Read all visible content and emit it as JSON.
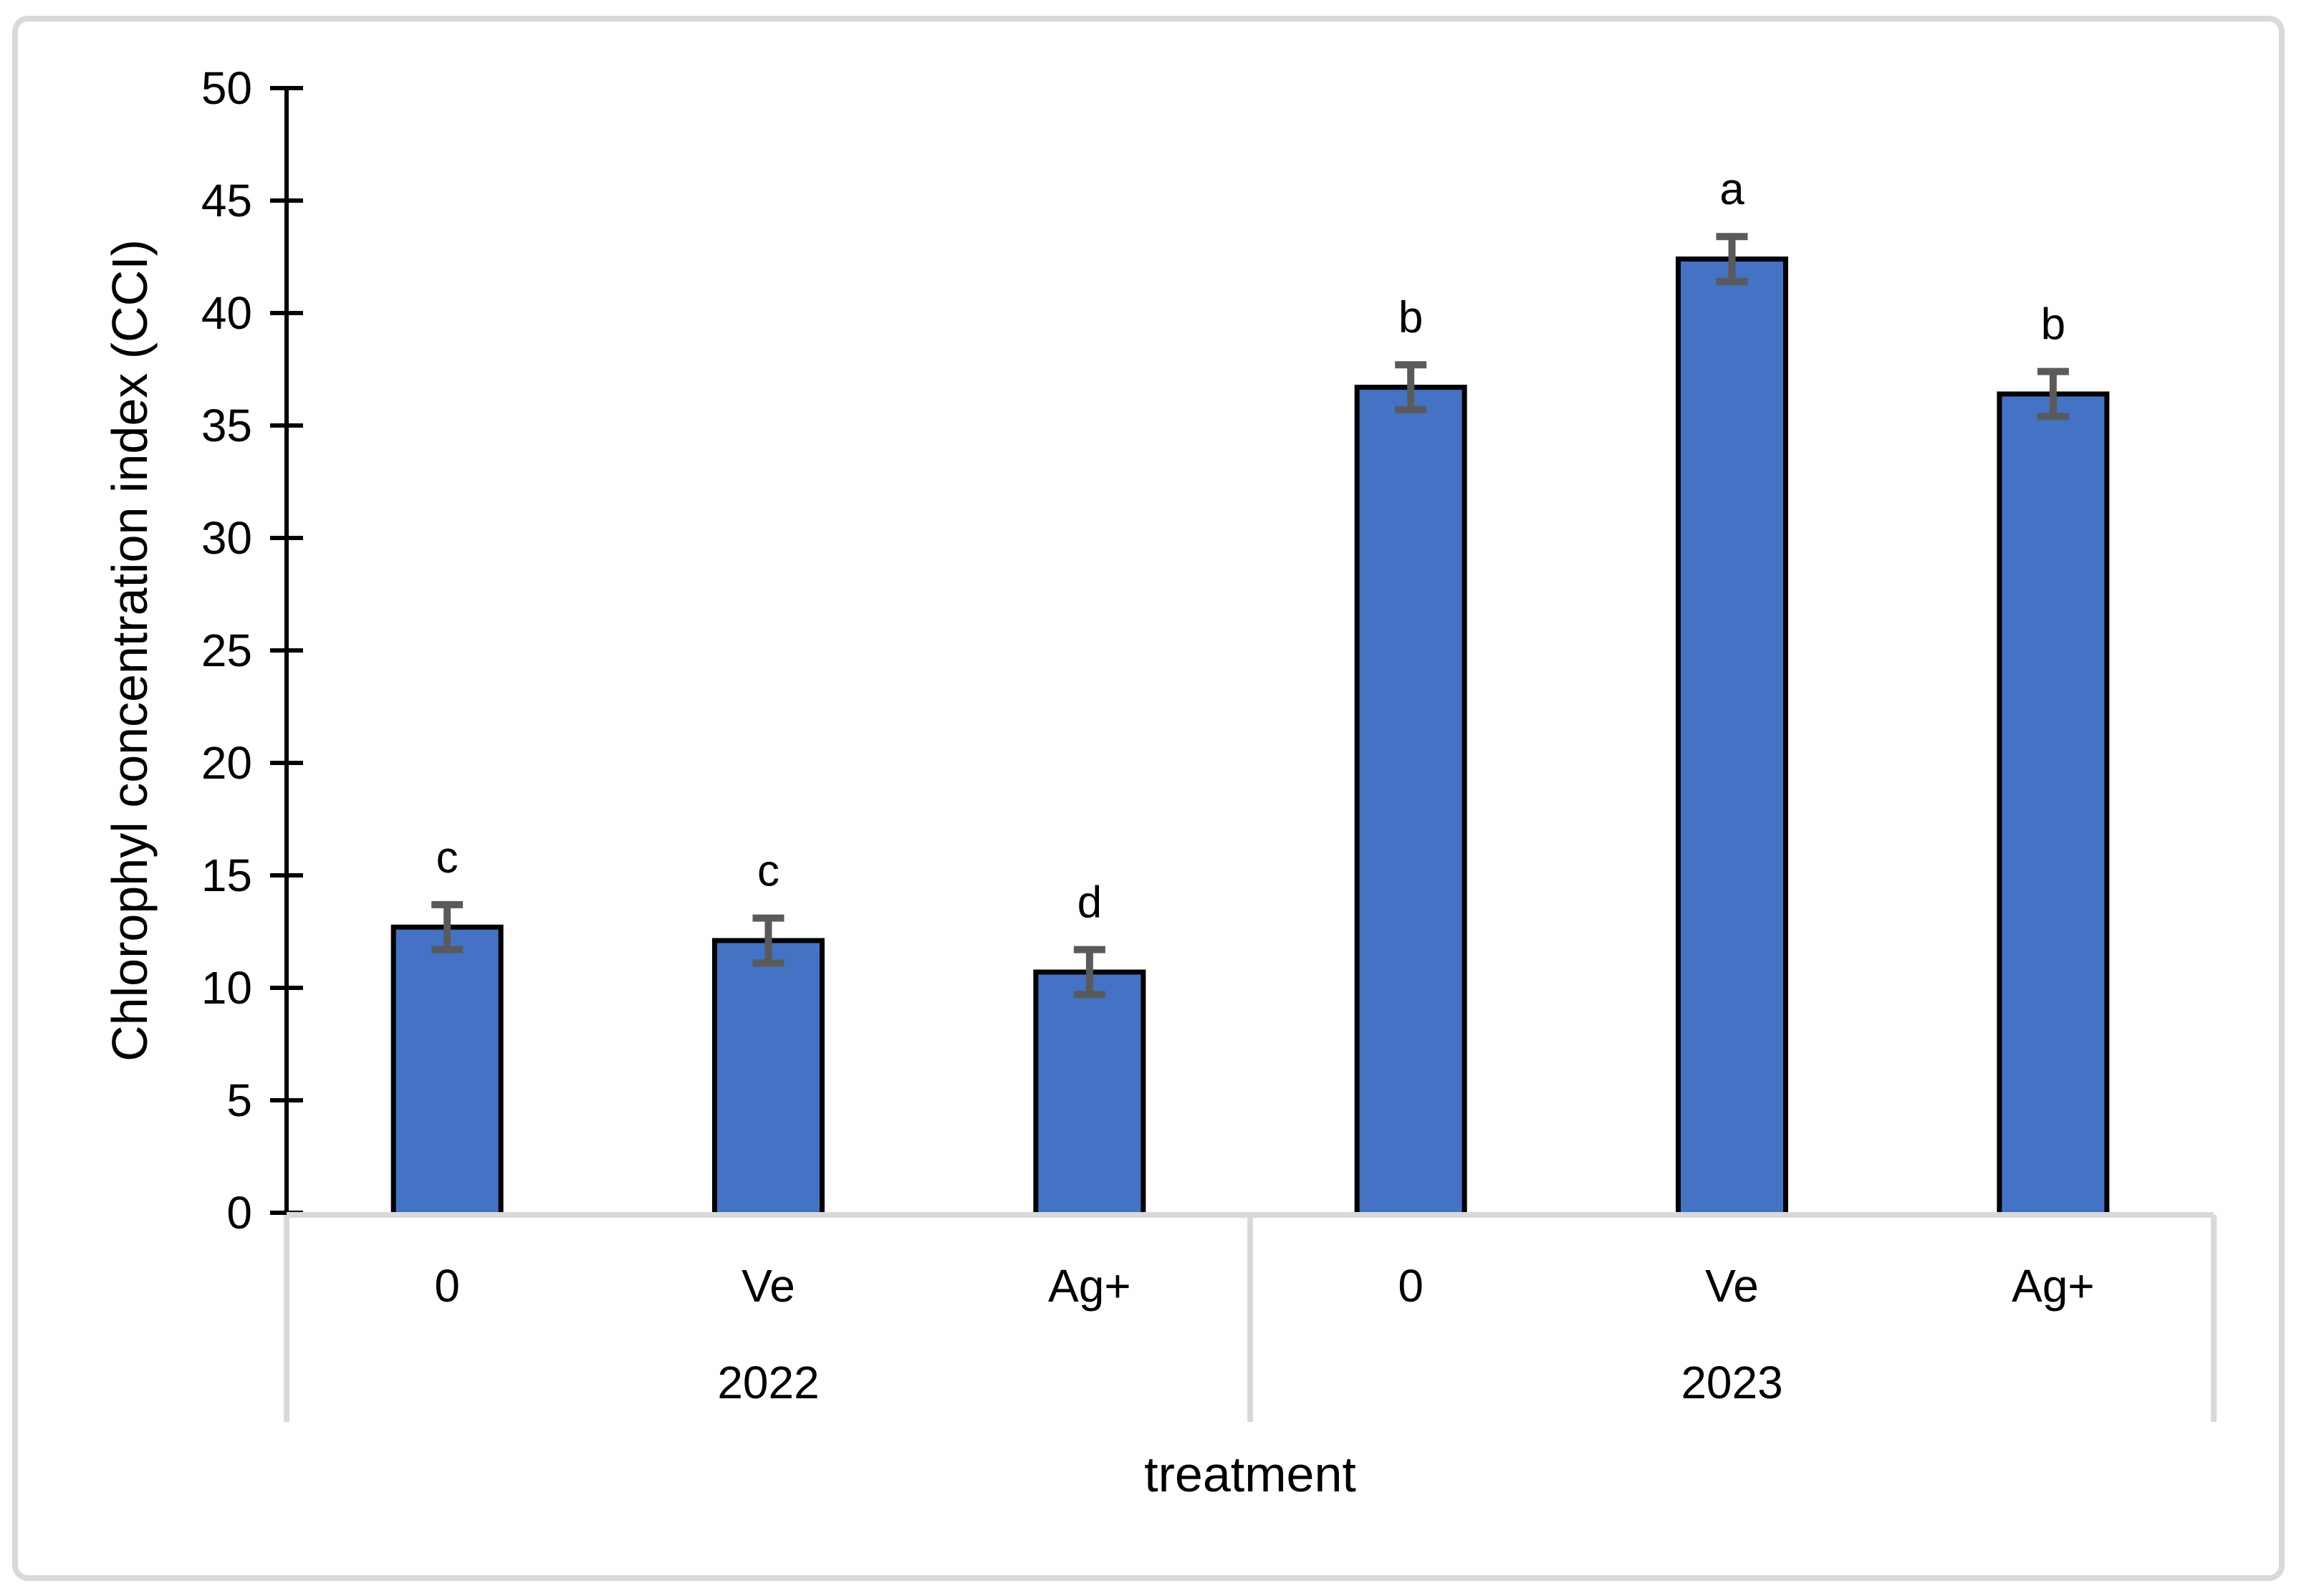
{
  "chart_data": {
    "type": "bar",
    "title": "",
    "ylabel": "Chlorophyl concentration index (CCI)",
    "xlabel": "treatment",
    "ylim": [
      0,
      50
    ],
    "ytick_step": 5,
    "yticks": [
      0,
      5,
      10,
      15,
      20,
      25,
      30,
      35,
      40,
      45,
      50
    ],
    "grid": false,
    "legend_position": "none",
    "categories_note": "two-level category axis: treatment within year",
    "groups": [
      {
        "label": "2022",
        "categories": [
          "0",
          "Ve",
          "Ag+"
        ],
        "values": [
          12.7,
          12.1,
          10.7
        ],
        "errors": [
          1.0,
          1.0,
          1.0
        ],
        "letters": [
          "c",
          "c",
          "d"
        ]
      },
      {
        "label": "2023",
        "categories": [
          "0",
          "Ve",
          "Ag+"
        ],
        "values": [
          36.7,
          42.4,
          36.4
        ],
        "errors": [
          1.0,
          1.0,
          1.0
        ],
        "letters": [
          "b",
          "a",
          "b"
        ]
      }
    ],
    "colors": {
      "bar_fill": "#4472C4",
      "bar_border": "#000000",
      "error_bar": "#5A5A5A",
      "value_axis": "#000000",
      "category_table_lines": "#D9D9D9",
      "chart_border": "#D9D9D9",
      "background": "#FFFFFF"
    }
  }
}
